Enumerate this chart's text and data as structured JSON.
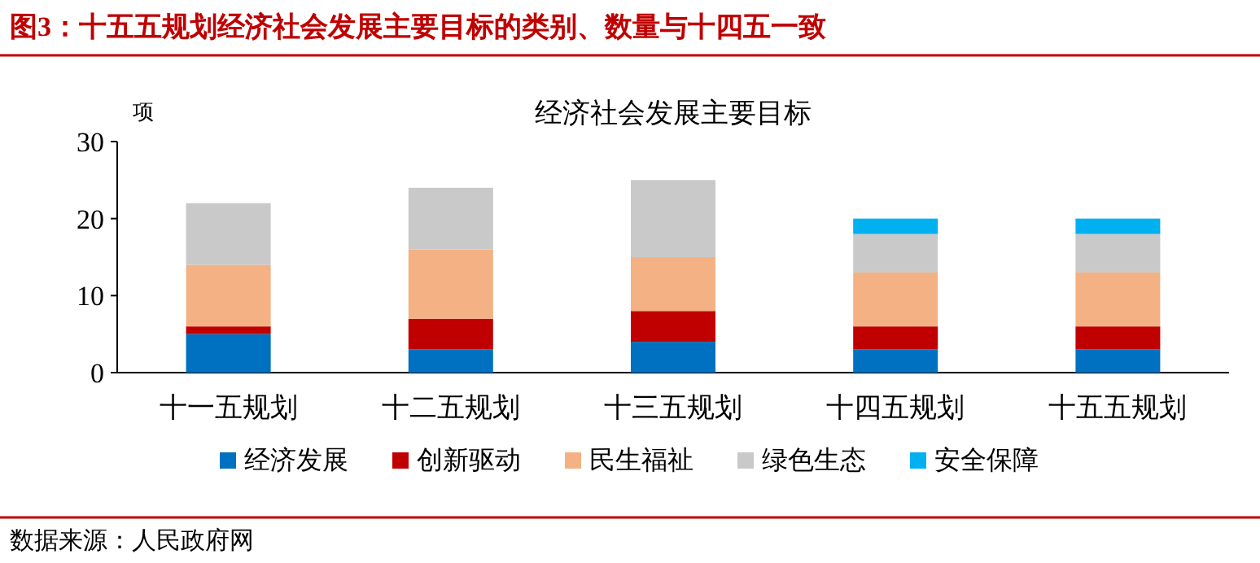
{
  "chart_data": {
    "type": "bar",
    "stacked": true,
    "title": "图3：十五五规划经济社会发展主要目标的类别、数量与十四五一致",
    "subtitle": "经济社会发展主要目标",
    "ylabel": "项",
    "categories": [
      "十一五规划",
      "十二五规划",
      "十三五规划",
      "十四五规划",
      "十五五规划"
    ],
    "series": [
      {
        "name": "经济发展",
        "color": "#0070c0",
        "values": [
          5,
          3,
          4,
          3,
          3
        ]
      },
      {
        "name": "创新驱动",
        "color": "#c00000",
        "values": [
          1,
          4,
          4,
          3,
          3
        ]
      },
      {
        "name": "民生福祉",
        "color": "#f4b183",
        "values": [
          8,
          9,
          7,
          7,
          7
        ]
      },
      {
        "name": "绿色生态",
        "color": "#c9c9c9",
        "values": [
          8,
          8,
          10,
          5,
          5
        ]
      },
      {
        "name": "安全保障",
        "color": "#00b0f0",
        "values": [
          0,
          0,
          0,
          2,
          2
        ]
      }
    ],
    "ylim": [
      0,
      30
    ],
    "yticks": [
      0,
      10,
      20,
      30
    ],
    "grid": false,
    "legend": "bottom",
    "annotations": [
      "数据来源：人民政府网"
    ]
  }
}
